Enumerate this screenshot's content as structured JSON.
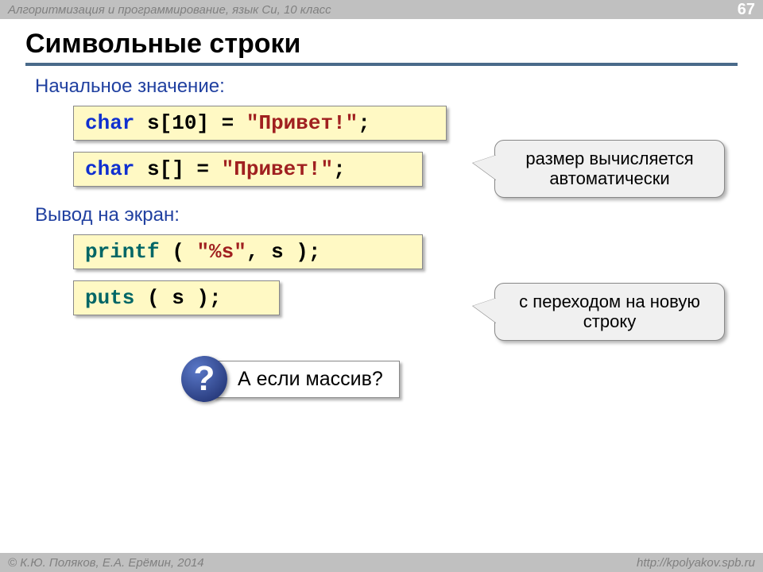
{
  "header": {
    "breadcrumb": "Алгоритмизация и программирование, язык Си, 10 класс",
    "page_number": "67"
  },
  "title": "Символьные строки",
  "section1_label": "Начальное значение:",
  "code1": {
    "kw": "char",
    "rest": " s[10] = ",
    "lit": "\"Привет!\"",
    "tail": ";"
  },
  "code2": {
    "kw": "char",
    "rest": " s[] = ",
    "lit": "\"Привет!\"",
    "tail": ";"
  },
  "callout1": "размер вычисляется автоматически",
  "section2_label": "Вывод на экран:",
  "code3": {
    "full": "printf ( \"%s\", s );",
    "fn": "printf",
    "open": " ( ",
    "lit": "\"%s\"",
    "rest": ", s );"
  },
  "code4": {
    "fn": "puts",
    "rest": " ( s );"
  },
  "callout2": "с переходом на новую строку",
  "question": "А если массив?",
  "q_mark": "?",
  "footer": {
    "left": "© К.Ю. Поляков, Е.А. Ерёмин, 2014",
    "right": "http://kpolyakov.spb.ru"
  }
}
